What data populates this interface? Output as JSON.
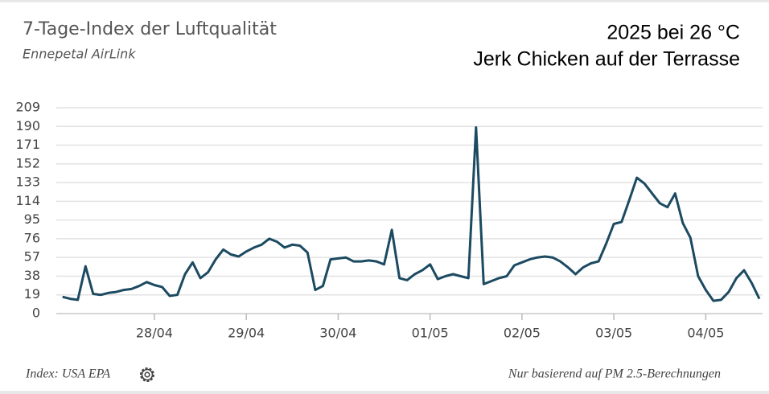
{
  "chart_data": {
    "type": "line",
    "title": "7-Tage-Index der Luftqualität",
    "subtitle": "Ennepetal AirLink",
    "annotations": [
      "2025 bei 26 °C",
      "Jerk Chicken auf der Terrasse"
    ],
    "footer_left": "Index: USA EPA",
    "footer_right": "Nur basierend auf PM 2.5-Berechnungen",
    "categories": [
      null,
      null,
      null,
      null,
      null,
      null,
      null,
      null,
      null,
      null,
      null,
      null,
      "28/04",
      null,
      null,
      null,
      null,
      null,
      null,
      null,
      null,
      null,
      null,
      null,
      "29/04",
      null,
      null,
      null,
      null,
      null,
      null,
      null,
      null,
      null,
      null,
      null,
      "30/04",
      null,
      null,
      null,
      null,
      null,
      null,
      null,
      null,
      null,
      null,
      null,
      "01/05",
      null,
      null,
      null,
      null,
      null,
      null,
      null,
      null,
      null,
      null,
      null,
      "02/05",
      null,
      null,
      null,
      null,
      null,
      null,
      null,
      null,
      null,
      null,
      null,
      "03/05",
      null,
      null,
      null,
      null,
      null,
      null,
      null,
      null,
      null,
      null,
      null,
      "04/05",
      null,
      null,
      null,
      null,
      null,
      null,
      null
    ],
    "values": [
      17,
      15,
      14,
      48,
      20,
      19,
      21,
      22,
      24,
      25,
      28,
      32,
      29,
      27,
      18,
      19,
      40,
      52,
      36,
      42,
      55,
      65,
      60,
      58,
      63,
      67,
      70,
      76,
      73,
      67,
      70,
      69,
      62,
      24,
      28,
      55,
      56,
      57,
      53,
      53,
      54,
      53,
      50,
      85,
      36,
      34,
      40,
      44,
      50,
      35,
      38,
      40,
      38,
      36,
      189,
      30,
      33,
      36,
      38,
      49,
      52,
      55,
      57,
      58,
      57,
      53,
      47,
      40,
      47,
      51,
      53,
      71,
      91,
      93,
      115,
      138,
      132,
      122,
      112,
      108,
      122,
      92,
      77,
      38,
      24,
      13,
      14,
      22,
      36,
      44,
      31,
      15
    ],
    "color": "#1b4a61",
    "ylim": [
      0,
      209
    ],
    "yticks": [
      0,
      19,
      38,
      57,
      76,
      95,
      114,
      133,
      152,
      171,
      190,
      209
    ],
    "grid": true
  }
}
